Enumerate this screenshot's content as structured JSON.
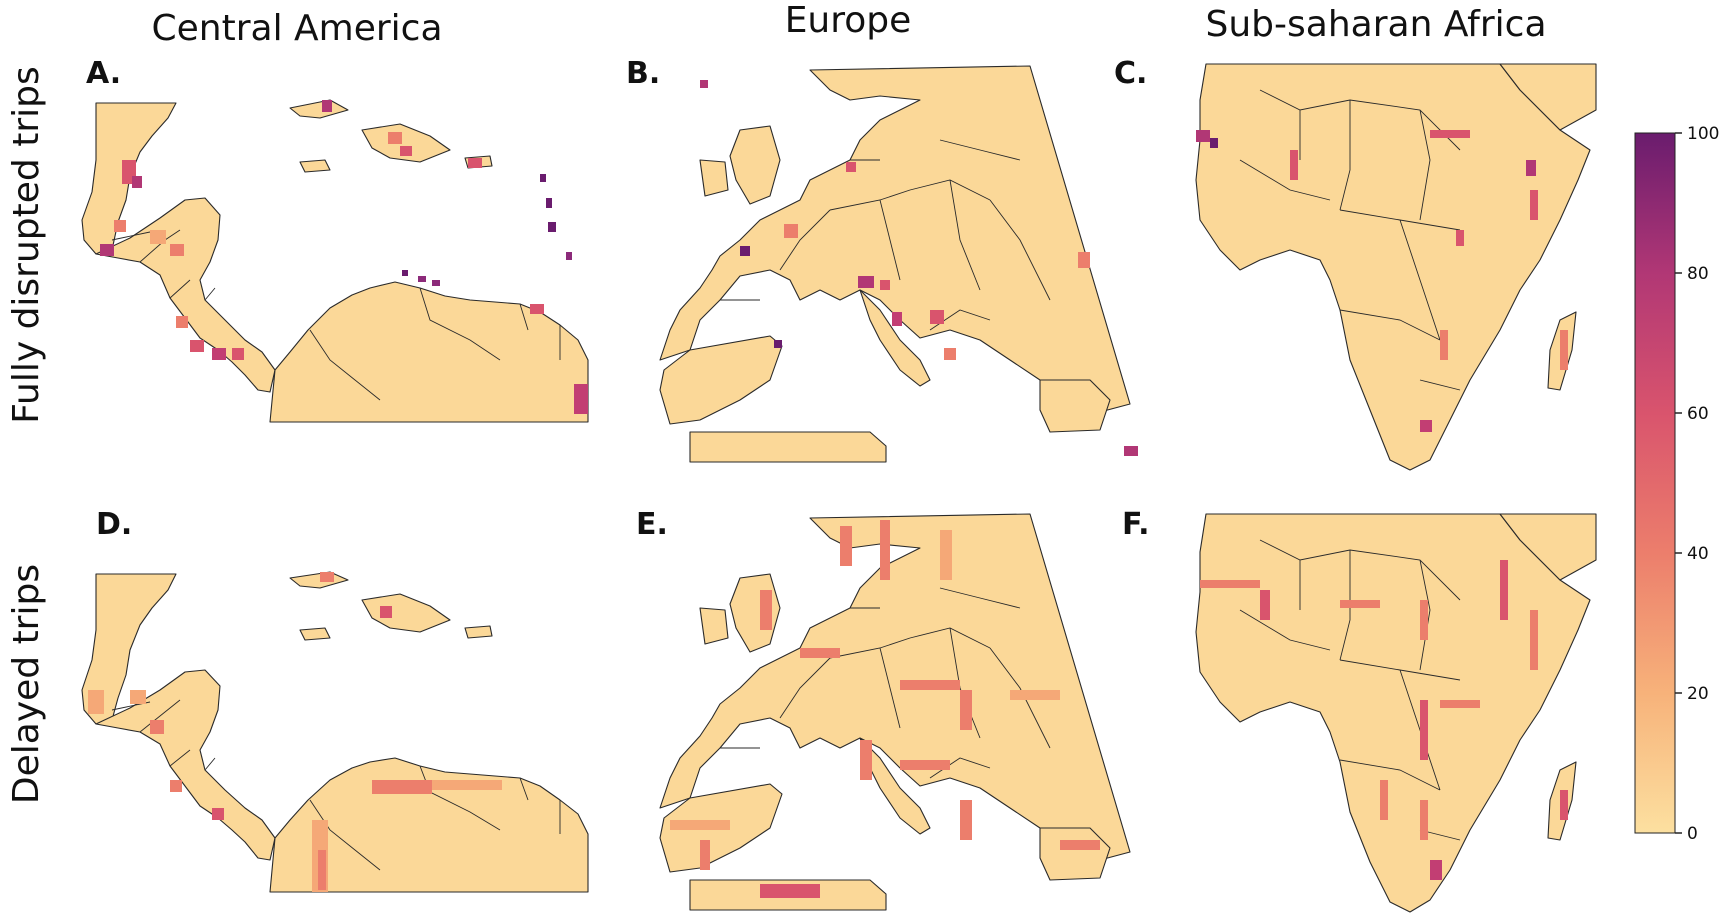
{
  "columns": [
    {
      "title": "Central America"
    },
    {
      "title": "Europe"
    },
    {
      "title": "Sub-saharan Africa"
    }
  ],
  "rows": [
    {
      "title": "Fully disrupted trips"
    },
    {
      "title": "Delayed trips"
    }
  ],
  "panels": [
    {
      "label": "A.",
      "region": "Central America",
      "metric": "Fully disrupted trips"
    },
    {
      "label": "B.",
      "region": "Europe",
      "metric": "Fully disrupted trips"
    },
    {
      "label": "C.",
      "region": "Sub-saharan Africa",
      "metric": "Fully disrupted trips"
    },
    {
      "label": "D.",
      "region": "Central America",
      "metric": "Delayed trips"
    },
    {
      "label": "E.",
      "region": "Europe",
      "metric": "Delayed trips"
    },
    {
      "label": "F.",
      "region": "Sub-saharan Africa",
      "metric": "Delayed trips"
    }
  ],
  "colorbar": {
    "min": 0,
    "max": 100,
    "ticks": [
      "100",
      "80",
      "60",
      "40",
      "20",
      "0"
    ],
    "colormap_stops": [
      "#fce2a3",
      "#f4a470",
      "#e5606a",
      "#c23e73",
      "#8c2a7a",
      "#6a1c6e"
    ]
  },
  "colors": {
    "land_base": "#fbd898",
    "border": "#2a2a2a",
    "background": "#ffffff"
  }
}
